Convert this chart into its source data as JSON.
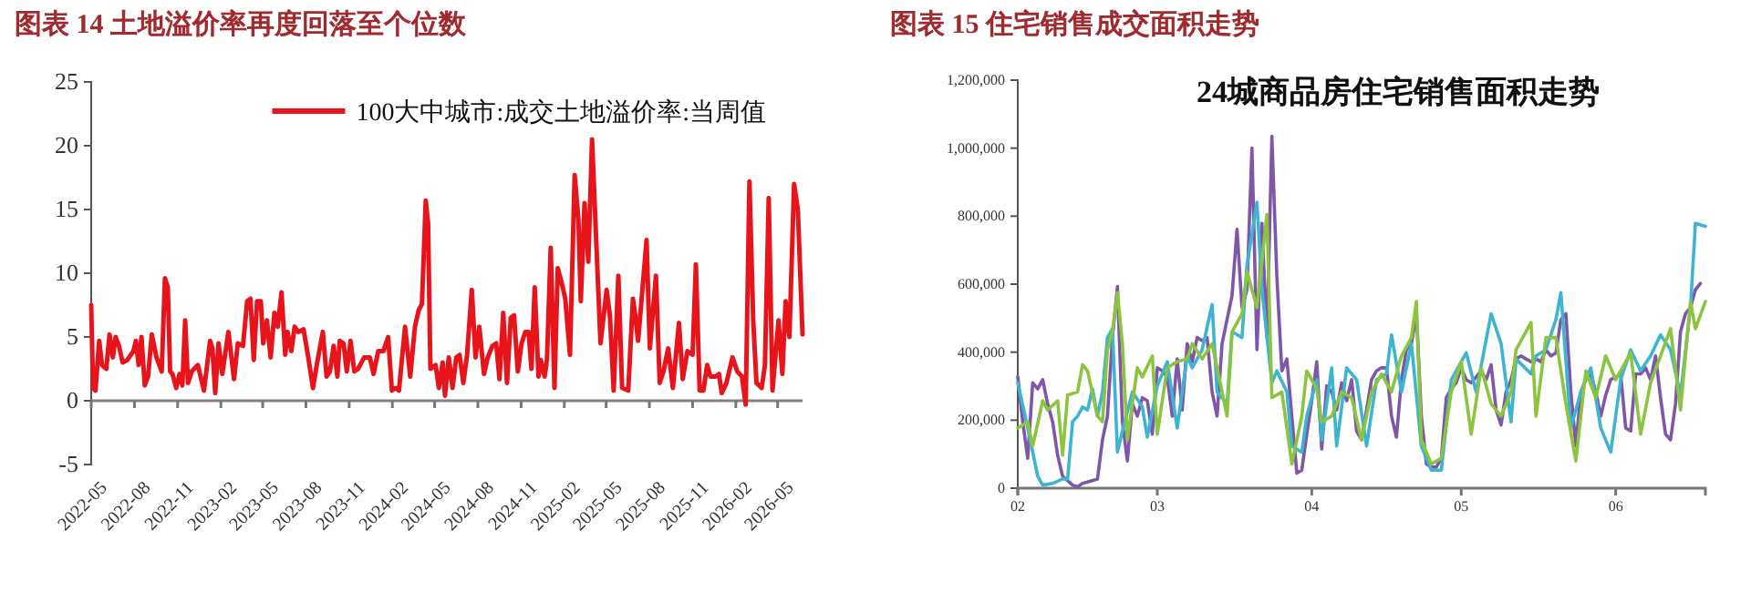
{
  "chart_data": [
    {
      "type": "line",
      "title": "图表 14 土地溢价率再度回落至个位数",
      "legend": "top right",
      "ref_lines": [
        {
          "axis": "y",
          "value": 0,
          "color": "#808080"
        }
      ],
      "xlim": [
        "2022-05-01",
        "2026-06-23"
      ],
      "ylim": [
        -5,
        25
      ],
      "yticks": [
        -5,
        0,
        5,
        10,
        15,
        20,
        25
      ],
      "xticks": [
        "2022-05",
        "2022-08",
        "2022-11",
        "2023-02",
        "2023-05",
        "2023-08",
        "2023-11",
        "2024-02",
        "2024-05",
        "2024-08",
        "2024-11",
        "2025-02",
        "2025-05",
        "2025-08",
        "2025-11",
        "2026-02",
        "2026-05"
      ],
      "series": [
        {
          "name": "100大中城市:成交土地溢价率:当周值",
          "color": "#e8141c",
          "x": [
            "2022-05-01",
            "2022-05-05",
            "2022-05-10",
            "2022-05-18",
            "2022-05-24",
            "2022-06-02",
            "2022-06-09",
            "2022-06-16",
            "2022-06-22",
            "2022-06-29",
            "2022-07-07",
            "2022-07-17",
            "2022-07-30",
            "2022-08-04",
            "2022-08-10",
            "2022-08-16",
            "2022-08-23",
            "2022-08-30",
            "2022-09-07",
            "2022-09-17",
            "2022-09-28",
            "2022-10-05",
            "2022-10-11",
            "2022-10-16",
            "2022-10-21",
            "2022-10-29",
            "2022-11-05",
            "2022-11-11",
            "2022-11-17",
            "2022-11-23",
            "2022-12-01",
            "2022-12-14",
            "2022-12-27",
            "2023-01-09",
            "2023-01-14",
            "2023-01-20",
            "2023-01-27",
            "2023-02-04",
            "2023-02-17",
            "2023-03-01",
            "2023-03-09",
            "2023-03-20",
            "2023-03-29",
            "2023-04-05",
            "2023-04-12",
            "2023-04-19",
            "2023-04-27",
            "2023-05-02",
            "2023-05-10",
            "2023-05-18",
            "2023-05-26",
            "2023-06-02",
            "2023-06-10",
            "2023-06-18",
            "2023-06-23",
            "2023-07-01",
            "2023-07-08",
            "2023-07-16",
            "2023-07-27",
            "2023-08-06",
            "2023-08-16",
            "2023-08-24",
            "2023-09-06",
            "2023-09-14",
            "2023-09-21",
            "2023-09-29",
            "2023-10-07",
            "2023-10-12",
            "2023-10-20",
            "2023-10-27",
            "2023-11-04",
            "2023-11-12",
            "2023-11-20",
            "2023-12-03",
            "2023-12-15",
            "2023-12-23",
            "2024-01-02",
            "2024-01-13",
            "2024-01-23",
            "2024-01-31",
            "2024-02-08",
            "2024-02-15",
            "2024-02-28",
            "2024-03-10",
            "2024-03-20",
            "2024-03-28",
            "2024-04-04",
            "2024-04-12",
            "2024-04-17",
            "2024-04-22",
            "2024-05-03",
            "2024-05-10",
            "2024-05-18",
            "2024-05-23",
            "2024-05-31",
            "2024-06-08",
            "2024-06-16",
            "2024-06-23",
            "2024-07-01",
            "2024-07-09",
            "2024-07-19",
            "2024-07-27",
            "2024-08-04",
            "2024-08-14",
            "2024-08-22",
            "2024-09-01",
            "2024-09-09",
            "2024-09-16",
            "2024-09-24",
            "2024-10-02",
            "2024-10-10",
            "2024-10-17",
            "2024-10-25",
            "2024-11-02",
            "2024-11-10",
            "2024-11-17",
            "2024-11-23",
            "2024-11-30",
            "2024-12-08",
            "2024-12-13",
            "2024-12-21",
            "2024-12-26",
            "2025-01-03",
            "2025-01-11",
            "2025-01-18",
            "2025-01-26",
            "2025-02-03",
            "2025-02-13",
            "2025-02-23",
            "2025-03-03",
            "2025-03-08",
            "2025-03-16",
            "2025-03-24",
            "2025-04-01",
            "2025-04-08",
            "2025-04-19",
            "2025-05-02",
            "2025-05-09",
            "2025-05-17",
            "2025-05-27",
            "2025-06-04",
            "2025-06-17",
            "2025-06-27",
            "2025-07-02",
            "2025-07-08",
            "2025-07-26",
            "2025-08-02",
            "2025-08-15",
            "2025-08-23",
            "2025-08-31",
            "2025-09-10",
            "2025-09-20",
            "2025-10-03",
            "2025-10-11",
            "2025-10-21",
            "2025-11-01",
            "2025-11-08",
            "2025-11-16",
            "2025-11-24",
            "2025-12-02",
            "2025-12-09",
            "2025-12-20",
            "2025-12-27",
            "2026-01-02",
            "2026-01-12",
            "2026-01-25",
            "2026-02-04",
            "2026-02-14",
            "2026-02-22",
            "2026-03-02",
            "2026-03-10",
            "2026-03-17",
            "2026-03-28",
            "2026-04-04",
            "2026-04-12",
            "2026-04-20",
            "2026-05-03",
            "2026-05-11",
            "2026-05-18",
            "2026-05-26",
            "2026-06-05",
            "2026-06-13",
            "2026-06-23"
          ],
          "values": [
            7.5,
            1.0,
            0.8,
            4.7,
            2.8,
            2.5,
            5.2,
            3.4,
            5.0,
            4.3,
            3.0,
            3.2,
            3.9,
            4.7,
            2.8,
            5.0,
            1.2,
            1.9,
            5.2,
            3.4,
            2.3,
            9.6,
            8.9,
            2.3,
            2.1,
            1.0,
            2.1,
            1.2,
            6.3,
            1.4,
            2.3,
            2.8,
            0.8,
            4.7,
            4.1,
            0.6,
            4.5,
            2.1,
            5.4,
            1.7,
            4.5,
            4.3,
            7.8,
            8.0,
            3.2,
            7.8,
            7.8,
            4.5,
            6.3,
            3.4,
            6.9,
            5.8,
            8.5,
            3.6,
            5.4,
            3.9,
            5.8,
            5.4,
            5.6,
            3.4,
            1.0,
            2.8,
            5.4,
            1.9,
            2.3,
            4.3,
            1.9,
            4.7,
            4.5,
            2.3,
            4.7,
            2.3,
            2.5,
            3.4,
            3.4,
            2.1,
            3.9,
            3.9,
            5.0,
            0.8,
            1.0,
            0.8,
            5.8,
            1.9,
            5.8,
            7.1,
            7.6,
            15.7,
            13.9,
            2.5,
            2.8,
            1.0,
            3.0,
            0.4,
            3.4,
            1.0,
            3.4,
            3.6,
            1.4,
            3.6,
            8.7,
            3.4,
            5.8,
            2.1,
            3.4,
            4.3,
            4.5,
            1.7,
            6.9,
            1.4,
            6.5,
            6.7,
            2.3,
            4.5,
            5.4,
            5.4,
            2.5,
            8.9,
            1.9,
            3.2,
            1.9,
            3.2,
            12.0,
            1.0,
            10.4,
            9.3,
            8.0,
            3.6,
            17.7,
            14.2,
            7.8,
            15.5,
            10.9,
            20.5,
            14.2,
            4.5,
            8.7,
            6.7,
            0.8,
            9.8,
            1.0,
            0.8,
            8.0,
            6.7,
            4.7,
            12.6,
            4.1,
            9.8,
            1.4,
            2.3,
            4.1,
            1.0,
            6.1,
            1.7,
            3.9,
            3.6,
            10.7,
            0.8,
            0.8,
            2.8,
            1.9,
            1.9,
            2.1,
            0.6,
            1.4,
            3.4,
            2.3,
            1.9,
            -0.3,
            17.2,
            6.3,
            1.4,
            1.0,
            2.8,
            15.9,
            0.8,
            6.3,
            2.1,
            7.8,
            5.0,
            17.0,
            15.0,
            5.2
          ]
        }
      ]
    },
    {
      "type": "line",
      "title": "图表 15 住宅销售成交面积走势",
      "subtitle": "24城商品房住宅销售面积走势",
      "xlim": [
        "--02-01",
        "--06-19"
      ],
      "ylim": [
        0,
        1200000
      ],
      "yticks": [
        0,
        {
          "value": 200000,
          "label": "200,000"
        },
        {
          "value": 400000,
          "label": "400,000"
        },
        {
          "value": 600000,
          "label": "600,000"
        },
        {
          "value": 800000,
          "label": "800,000"
        },
        {
          "value": 1000000,
          "label": "1,000,000"
        },
        {
          "value": 1200000,
          "label": "1,200,000"
        }
      ],
      "xticks": [
        {
          "value": "--02-01",
          "label": "02"
        },
        {
          "value": "--03-01",
          "label": "03"
        },
        {
          "value": "--04-01",
          "label": "04"
        },
        {
          "value": "--05-01",
          "label": "05"
        },
        {
          "value": "--06-01",
          "label": "06"
        }
      ],
      "series": [
        {
          "color": "#7e57a8",
          "x": [
            "--02-01",
            "--02-02",
            "--02-03",
            "--02-04",
            "--02-05",
            "--02-06",
            "--02-07",
            "--02-08",
            "--02-09",
            "--02-10",
            "--02-12",
            "--02-13",
            "--02-14",
            "--02-15",
            "--02-17",
            "--02-18",
            "--02-19",
            "--02-20",
            "--02-21",
            "--02-22",
            "--02-23",
            "--02-24",
            "--02-25",
            "--02-26",
            "--02-27",
            "--02-28",
            "--03-01",
            "--03-02",
            "--03-03",
            "--03-04",
            "--03-05",
            "--03-06",
            "--03-07",
            "--03-08",
            "--03-09",
            "--03-10",
            "--03-11",
            "--03-12",
            "--03-13",
            "--03-14",
            "--03-15",
            "--03-16",
            "--03-17",
            "--03-18",
            "--03-19",
            "--03-20",
            "--03-21",
            "--03-22",
            "--03-23",
            "--03-24",
            "--03-25",
            "--03-26",
            "--03-27",
            "--03-28",
            "--03-29",
            "--03-30",
            "--03-31",
            "--04-01",
            "--04-02",
            "--04-03",
            "--04-04",
            "--04-05",
            "--04-06",
            "--04-07",
            "--04-08",
            "--04-09",
            "--04-10",
            "--04-11",
            "--04-12",
            "--04-13",
            "--04-14",
            "--04-15",
            "--04-16",
            "--04-17",
            "--04-18",
            "--04-19",
            "--04-20",
            "--04-21",
            "--04-22",
            "--04-23",
            "--04-24",
            "--04-25",
            "--04-26",
            "--04-27",
            "--04-28",
            "--04-29",
            "--04-30",
            "--05-01",
            "--05-02",
            "--05-03",
            "--05-04",
            "--05-05",
            "--05-06",
            "--05-07",
            "--05-08",
            "--05-09",
            "--05-10",
            "--05-11",
            "--05-12",
            "--05-13",
            "--05-14",
            "--05-15",
            "--05-16",
            "--05-17",
            "--05-18",
            "--05-19",
            "--05-20",
            "--05-21",
            "--05-22",
            "--05-23",
            "--05-24",
            "--05-25",
            "--05-26",
            "--05-27",
            "--05-28",
            "--05-29",
            "--05-30",
            "--05-31",
            "--06-01",
            "--06-02",
            "--06-03",
            "--06-04",
            "--06-05",
            "--06-06",
            "--06-07",
            "--06-08",
            "--06-09",
            "--06-10",
            "--06-11",
            "--06-12",
            "--06-13",
            "--06-14",
            "--06-15",
            "--06-16",
            "--06-17",
            "--06-18"
          ],
          "values": [
            328000,
            195000,
            88000,
            310000,
            292000,
            319000,
            248000,
            195000,
            97000,
            35000,
            9000,
            4000,
            14000,
            18000,
            27000,
            142000,
            212000,
            443000,
            593000,
            195000,
            80000,
            248000,
            212000,
            266000,
            257000,
            159000,
            354000,
            345000,
            327000,
            212000,
            380000,
            230000,
            425000,
            372000,
            443000,
            434000,
            443000,
            283000,
            212000,
            425000,
            496000,
            566000,
            761000,
            531000,
            584000,
            1000000,
            407000,
            779000,
            443000,
            1035000,
            620000,
            345000,
            380000,
            212000,
            44000,
            53000,
            159000,
            257000,
            372000,
            115000,
            301000,
            283000,
            230000,
            310000,
            257000,
            319000,
            168000,
            142000,
            230000,
            319000,
            345000,
            354000,
            354000,
            212000,
            150000,
            319000,
            407000,
            425000,
            513000,
            212000,
            71000,
            62000,
            62000,
            88000,
            266000,
            292000,
            310000,
            354000,
            319000,
            310000,
            327000,
            345000,
            319000,
            363000,
            230000,
            186000,
            283000,
            319000,
            380000,
            389000,
            380000,
            372000,
            380000,
            372000,
            407000,
            389000,
            398000,
            496000,
            513000,
            283000,
            124000,
            283000,
            319000,
            336000,
            283000,
            212000,
            274000,
            319000,
            327000,
            336000,
            177000,
            168000,
            336000,
            336000,
            354000,
            319000,
            389000,
            266000,
            159000,
            142000,
            248000,
            460000,
            513000,
            531000,
            584000,
            602000
          ]
        },
        {
          "color": "#3cb4d2",
          "x": [
            "--02-01",
            "--02-03",
            "--02-05",
            "--02-06",
            "--02-08",
            "--02-10",
            "--02-11",
            "--02-12",
            "--02-13",
            "--02-14",
            "--02-15",
            "--02-16",
            "--02-17",
            "--02-18",
            "--02-19",
            "--02-20",
            "--02-21",
            "--02-22",
            "--02-24",
            "--02-26",
            "--02-27",
            "--03-01",
            "--03-03",
            "--03-05",
            "--03-07",
            "--03-08",
            "--03-10",
            "--03-12",
            "--03-13",
            "--03-15",
            "--03-16",
            "--03-18",
            "--03-19",
            "--03-21",
            "--03-22",
            "--03-24",
            "--03-25",
            "--03-27",
            "--03-28",
            "--03-30",
            "--03-31",
            "--04-02",
            "--04-03",
            "--04-05",
            "--04-06",
            "--04-08",
            "--04-10",
            "--04-12",
            "--04-14",
            "--04-16",
            "--04-17",
            "--04-19",
            "--04-21",
            "--04-23",
            "--04-25",
            "--04-27",
            "--04-29",
            "--05-02",
            "--05-04",
            "--05-07",
            "--05-09",
            "--05-11",
            "--05-12",
            "--05-15",
            "--05-16",
            "--05-18",
            "--05-20",
            "--05-21",
            "--05-23",
            "--05-25",
            "--05-27",
            "--05-29",
            "--05-31",
            "--06-02",
            "--06-04",
            "--06-06",
            "--06-08",
            "--06-10",
            "--06-12",
            "--06-14",
            "--06-16",
            "--06-17",
            "--06-19"
          ],
          "values": [
            310000,
            177000,
            35000,
            9000,
            14000,
            27000,
            27000,
            195000,
            212000,
            239000,
            230000,
            292000,
            212000,
            283000,
            443000,
            469000,
            106000,
            168000,
            283000,
            239000,
            150000,
            301000,
            372000,
            177000,
            389000,
            354000,
            407000,
            540000,
            283000,
            248000,
            460000,
            443000,
            655000,
            841000,
            584000,
            310000,
            345000,
            283000,
            124000,
            106000,
            212000,
            319000,
            142000,
            354000,
            124000,
            354000,
            319000,
            124000,
            319000,
            336000,
            451000,
            283000,
            425000,
            124000,
            53000,
            53000,
            319000,
            398000,
            283000,
            513000,
            425000,
            195000,
            380000,
            336000,
            389000,
            407000,
            496000,
            575000,
            177000,
            283000,
            354000,
            177000,
            106000,
            319000,
            407000,
            345000,
            389000,
            451000,
            407000,
            274000,
            531000,
            779000,
            770000
          ]
        },
        {
          "color": "#8cc43f",
          "x": [
            "--02-01",
            "--02-03",
            "--02-04",
            "--02-06",
            "--02-07",
            "--02-09",
            "--02-10",
            "--02-11",
            "--02-13",
            "--02-14",
            "--02-15",
            "--02-17",
            "--02-18",
            "--02-19",
            "--02-20",
            "--02-21",
            "--02-22",
            "--02-23",
            "--02-25",
            "--02-26",
            "--02-28",
            "--03-01",
            "--03-03",
            "--03-05",
            "--03-07",
            "--03-08",
            "--03-10",
            "--03-12",
            "--03-15",
            "--03-16",
            "--03-18",
            "--03-19",
            "--03-21",
            "--03-23",
            "--03-24",
            "--03-26",
            "--03-28",
            "--03-30",
            "--03-31",
            "--04-02",
            "--04-03",
            "--04-05",
            "--04-07",
            "--04-09",
            "--04-11",
            "--04-13",
            "--04-15",
            "--04-17",
            "--04-19",
            "--04-21",
            "--04-22",
            "--04-23",
            "--04-25",
            "--04-27",
            "--04-29",
            "--05-01",
            "--05-03",
            "--05-05",
            "--05-07",
            "--05-09",
            "--05-11",
            "--05-12",
            "--05-15",
            "--05-16",
            "--05-18",
            "--05-20",
            "--05-22",
            "--05-24",
            "--05-26",
            "--05-28",
            "--05-30",
            "--06-01",
            "--06-04",
            "--06-06",
            "--06-08",
            "--06-10",
            "--06-12",
            "--06-14",
            "--06-16",
            "--06-17",
            "--06-19"
          ],
          "values": [
            177000,
            195000,
            124000,
            257000,
            230000,
            257000,
            97000,
            274000,
            283000,
            363000,
            345000,
            212000,
            195000,
            407000,
            460000,
            575000,
            425000,
            142000,
            354000,
            327000,
            389000,
            159000,
            354000,
            372000,
            380000,
            425000,
            380000,
            425000,
            212000,
            460000,
            513000,
            637000,
            531000,
            805000,
            266000,
            283000,
            71000,
            212000,
            345000,
            292000,
            195000,
            212000,
            283000,
            266000,
            142000,
            283000,
            336000,
            283000,
            389000,
            443000,
            549000,
            142000,
            71000,
            88000,
            283000,
            372000,
            159000,
            354000,
            248000,
            212000,
            283000,
            407000,
            487000,
            212000,
            443000,
            443000,
            248000,
            80000,
            345000,
            266000,
            389000,
            319000,
            398000,
            159000,
            310000,
            389000,
            469000,
            230000,
            549000,
            469000,
            549000
          ]
        }
      ]
    }
  ]
}
